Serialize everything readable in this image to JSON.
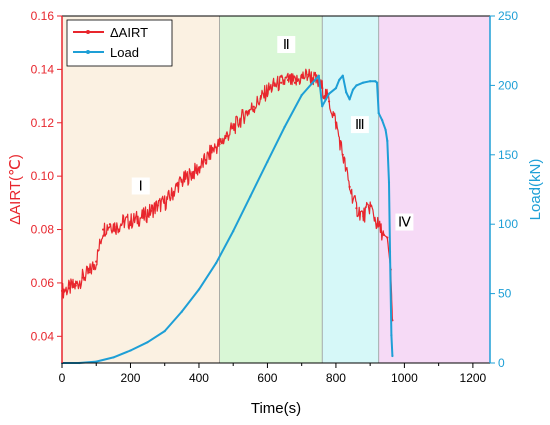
{
  "chart_data": {
    "type": "line",
    "x_axis": {
      "label": "Time(s)",
      "range": [
        0,
        1250
      ],
      "ticks": [
        0,
        200,
        400,
        600,
        800,
        1000,
        1200
      ],
      "tick_labels": [
        "0",
        "200",
        "400",
        "600",
        "800",
        "1000",
        "1200"
      ]
    },
    "y_axis_left": {
      "label": "ΔAIRT(℃)",
      "range": [
        0.03,
        0.16
      ],
      "ticks": [
        0.04,
        0.06,
        0.08,
        0.1,
        0.12,
        0.14,
        0.16
      ],
      "tick_labels": [
        "0.04",
        "0.06",
        "0.08",
        "0.10",
        "0.12",
        "0.14",
        "0.16"
      ],
      "color": "#e8262d"
    },
    "y_axis_right": {
      "label": "Load(kN)",
      "range": [
        0,
        250
      ],
      "ticks": [
        0,
        50,
        100,
        150,
        200,
        250
      ],
      "tick_labels": [
        "0",
        "50",
        "100",
        "150",
        "200",
        "250"
      ],
      "color": "#1e9fd6"
    },
    "legend": {
      "placement": "top-left",
      "entries": [
        {
          "name": "ΔAIRT",
          "color": "#e8262d"
        },
        {
          "name": "Load",
          "color": "#1e9fd6"
        }
      ]
    },
    "regions": [
      {
        "label": "Ⅰ",
        "x_start": 0,
        "x_end": 460,
        "color": "#fbf1e2"
      },
      {
        "label": "Ⅱ",
        "x_start": 460,
        "x_end": 760,
        "color": "#d9f7d6"
      },
      {
        "label": "Ⅲ",
        "x_start": 760,
        "x_end": 925,
        "color": "#d6f8f8"
      },
      {
        "label": "Ⅳ",
        "x_start": 925,
        "x_end": 1250,
        "color": "#f6daf6"
      }
    ],
    "region_label_positions": [
      {
        "x": 230,
        "y": 0.095
      },
      {
        "x": 655,
        "y": 0.148
      },
      {
        "x": 870,
        "y": 0.118
      },
      {
        "x": 1000,
        "y": 0.0815
      }
    ],
    "series": [
      {
        "name": "ΔAIRT",
        "axis": "left",
        "color": "#e8262d",
        "x": [
          0,
          20,
          40,
          60,
          80,
          100,
          120,
          140,
          160,
          180,
          200,
          220,
          240,
          260,
          280,
          300,
          320,
          340,
          360,
          380,
          400,
          420,
          440,
          460,
          480,
          500,
          520,
          540,
          560,
          580,
          600,
          620,
          640,
          660,
          680,
          700,
          720,
          740,
          760,
          780,
          800,
          820,
          840,
          860,
          880,
          900,
          920,
          940,
          950,
          960,
          965
        ],
        "y": [
          0.057,
          0.058,
          0.059,
          0.062,
          0.064,
          0.068,
          0.08,
          0.082,
          0.081,
          0.083,
          0.083,
          0.084,
          0.085,
          0.087,
          0.089,
          0.09,
          0.093,
          0.097,
          0.099,
          0.101,
          0.103,
          0.106,
          0.11,
          0.112,
          0.115,
          0.118,
          0.121,
          0.124,
          0.126,
          0.129,
          0.132,
          0.134,
          0.135,
          0.136,
          0.135,
          0.137,
          0.138,
          0.136,
          0.133,
          0.128,
          0.12,
          0.108,
          0.096,
          0.088,
          0.085,
          0.089,
          0.082,
          0.078,
          0.077,
          0.065,
          0.046
        ]
      },
      {
        "name": "Load",
        "axis": "right",
        "color": "#1e9fd6",
        "x": [
          0,
          50,
          100,
          150,
          200,
          250,
          300,
          350,
          400,
          450,
          500,
          550,
          600,
          650,
          700,
          750,
          760,
          780,
          800,
          810,
          820,
          830,
          840,
          850,
          860,
          880,
          900,
          915,
          920,
          925,
          935,
          945,
          950,
          955,
          958,
          962,
          965
        ],
        "y": [
          0,
          0,
          1,
          4,
          9,
          15,
          23,
          37,
          53,
          72,
          95,
          120,
          145,
          170,
          193,
          207,
          185,
          194,
          198,
          204,
          207,
          195,
          190,
          197,
          200,
          202,
          203,
          203,
          202,
          180,
          175,
          168,
          160,
          130,
          80,
          20,
          5
        ]
      }
    ]
  }
}
